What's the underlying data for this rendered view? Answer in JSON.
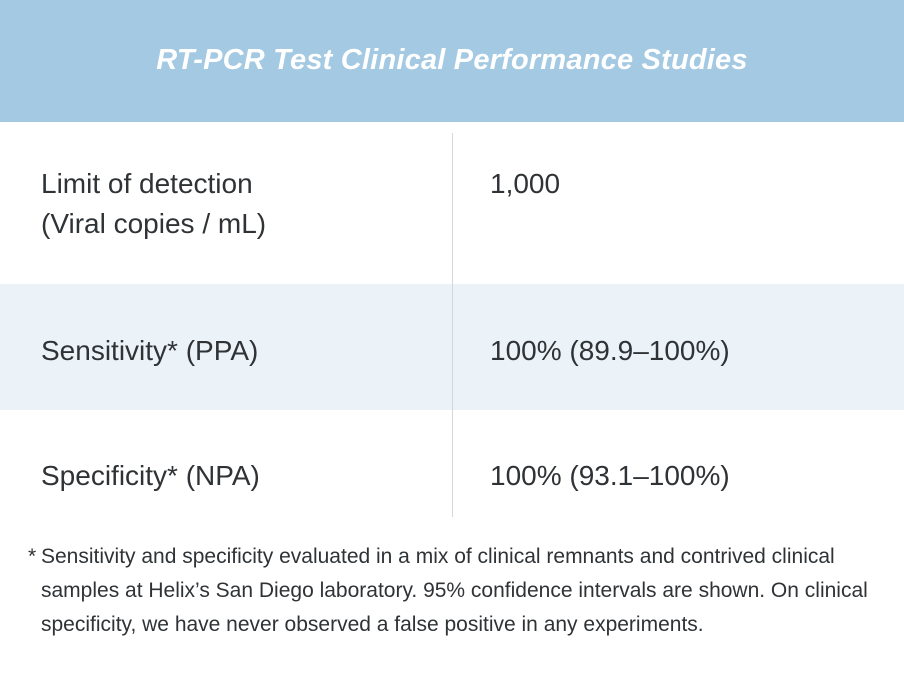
{
  "header": {
    "title": "RT-PCR Test Clinical Performance Studies"
  },
  "table": {
    "rows": [
      {
        "label_line1": "Limit of detection",
        "label_line2": "(Viral copies / mL)",
        "value": "1,000"
      },
      {
        "label": "Sensitivity* (PPA)",
        "value": "100% (89.9–100%)"
      },
      {
        "label": "Specificity* (NPA)",
        "value": "100% (93.1–100%)"
      }
    ]
  },
  "footnote": {
    "marker": "*",
    "text": "Sensitivity and specificity evaluated in a mix of clinical remnants and contrived clinical samples at Helix’s San Diego laboratory. 95% confidence intervals are shown. On clinical specificity, we have never observed a false positive in any experiments."
  },
  "colors": {
    "header_background": "#a4c9e2",
    "alternate_row_background": "#ebf2f8",
    "text": "#2f3336"
  }
}
